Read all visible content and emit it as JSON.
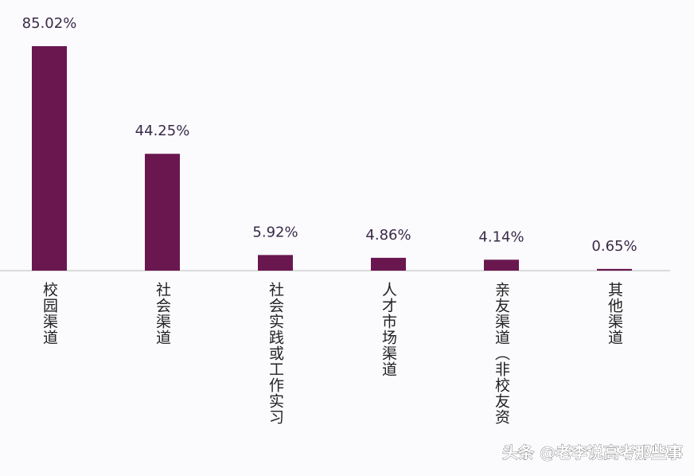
{
  "chart_data": {
    "type": "bar",
    "categories": [
      "校园渠道",
      "社会渠道",
      "社会实践或工作实习",
      "人才市场渠道",
      "亲友渠道（非校友资",
      "其他渠道"
    ],
    "values": [
      85.02,
      44.25,
      5.92,
      4.86,
      4.14,
      0.65
    ],
    "value_labels": [
      "85.02%",
      "44.25%",
      "5.92%",
      "4.86%",
      "4.14%",
      "0.65%"
    ],
    "color": "#6a1750"
  },
  "watermark": "头条 @老李说高考那些事"
}
